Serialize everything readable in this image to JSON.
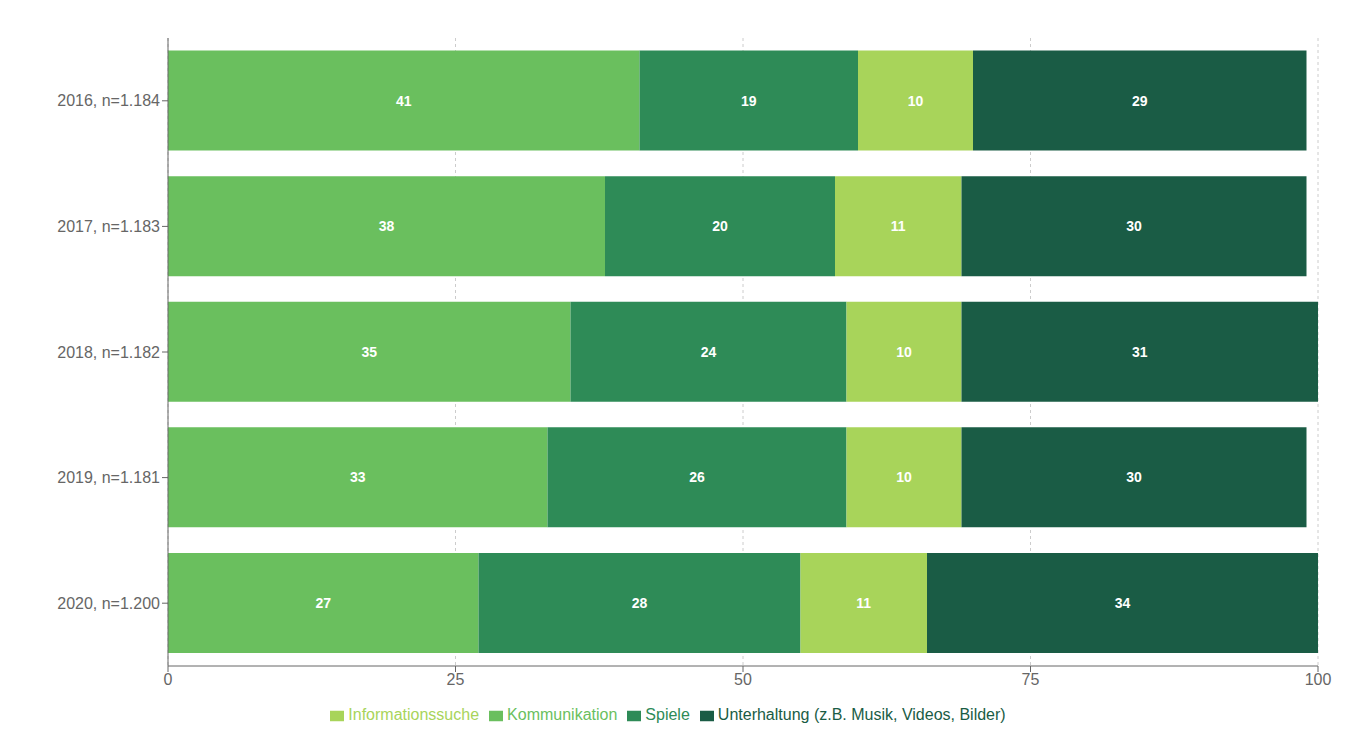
{
  "chart_data": {
    "type": "bar",
    "orientation": "horizontal",
    "stacked": true,
    "data_labels": true,
    "categories": [
      "2016, n=1.184",
      "2017, n=1.183",
      "2018, n=1.182",
      "2019, n=1.181",
      "2020, n=1.200"
    ],
    "series": [
      {
        "name": "Kommunikation",
        "color": "#6abf5e",
        "values": [
          41,
          38,
          35,
          33,
          27
        ]
      },
      {
        "name": "Spiele",
        "color": "#2e8b57",
        "values": [
          19,
          20,
          24,
          26,
          28
        ]
      },
      {
        "name": "Informationssuche",
        "color": "#a8d45a",
        "values": [
          10,
          11,
          10,
          10,
          11
        ]
      },
      {
        "name": "Unterhaltung (z.B. Musik, Videos, Bilder)",
        "color": "#1a5c45",
        "values": [
          29,
          30,
          31,
          30,
          34
        ]
      }
    ],
    "xlim": [
      0,
      100
    ],
    "xticks": [
      0,
      25,
      50,
      75,
      100
    ],
    "grid": true,
    "legend": "bottom"
  }
}
